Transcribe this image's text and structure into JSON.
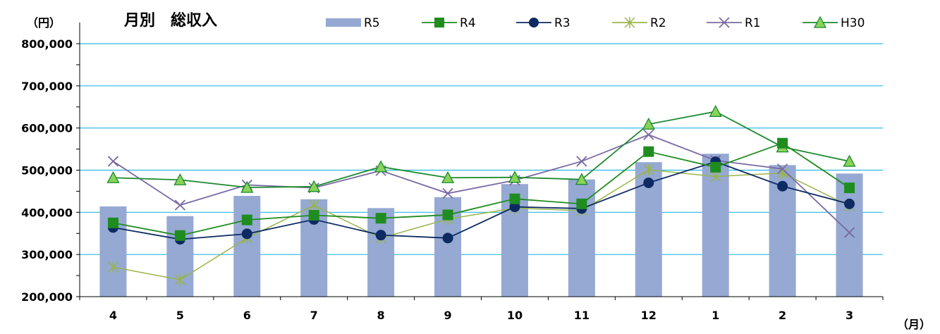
{
  "chart_data": {
    "type": "bar",
    "title": "月別　総収入",
    "ylabel": "（円）",
    "xlabel": "（月）",
    "categories": [
      "4",
      "5",
      "6",
      "7",
      "8",
      "9",
      "10",
      "11",
      "12",
      "1",
      "2",
      "3"
    ],
    "ylim": [
      200000,
      800000
    ],
    "yticks": [
      "200,000",
      "300,000",
      "400,000",
      "500,000",
      "600,000",
      "700,000",
      "800,000"
    ],
    "ytick_values": [
      200000,
      300000,
      400000,
      500000,
      600000,
      700000,
      800000
    ],
    "grid": true,
    "legend_position": "top",
    "series": [
      {
        "name": "R5",
        "kind": "bar",
        "color": "#95a9d3",
        "values": [
          414000,
          391000,
          439000,
          431000,
          410000,
          436000,
          467000,
          478000,
          519000,
          539000,
          512000,
          492000
        ]
      },
      {
        "name": "R4",
        "kind": "line",
        "marker": "square",
        "color": "#1f8c1f",
        "values": [
          375000,
          345000,
          382000,
          393000,
          386000,
          394000,
          432000,
          420000,
          544000,
          507000,
          564000,
          458000
        ]
      },
      {
        "name": "R3",
        "kind": "line",
        "marker": "circle",
        "color": "#0d2a63",
        "values": [
          364000,
          336000,
          349000,
          383000,
          346000,
          339000,
          413000,
          409000,
          470000,
          520000,
          462000,
          420000
        ]
      },
      {
        "name": "R2",
        "kind": "line",
        "marker": "asterisk",
        "color": "#98b54a",
        "values": [
          270000,
          240000,
          339000,
          417000,
          339000,
          384000,
          410000,
          404000,
          501000,
          485000,
          493000,
          415000
        ]
      },
      {
        "name": "R1",
        "kind": "line",
        "marker": "x",
        "color": "#7a6aa3",
        "values": [
          521000,
          417000,
          465000,
          458000,
          499000,
          445000,
          476000,
          521000,
          584000,
          523000,
          503000,
          352000
        ]
      },
      {
        "name": "H30",
        "kind": "line",
        "marker": "triangle",
        "color": "#1c8a2e",
        "fill": "#88d35a",
        "values": [
          482000,
          477000,
          459000,
          461000,
          508000,
          482000,
          483000,
          478000,
          609000,
          639000,
          555000,
          521000
        ]
      }
    ]
  }
}
